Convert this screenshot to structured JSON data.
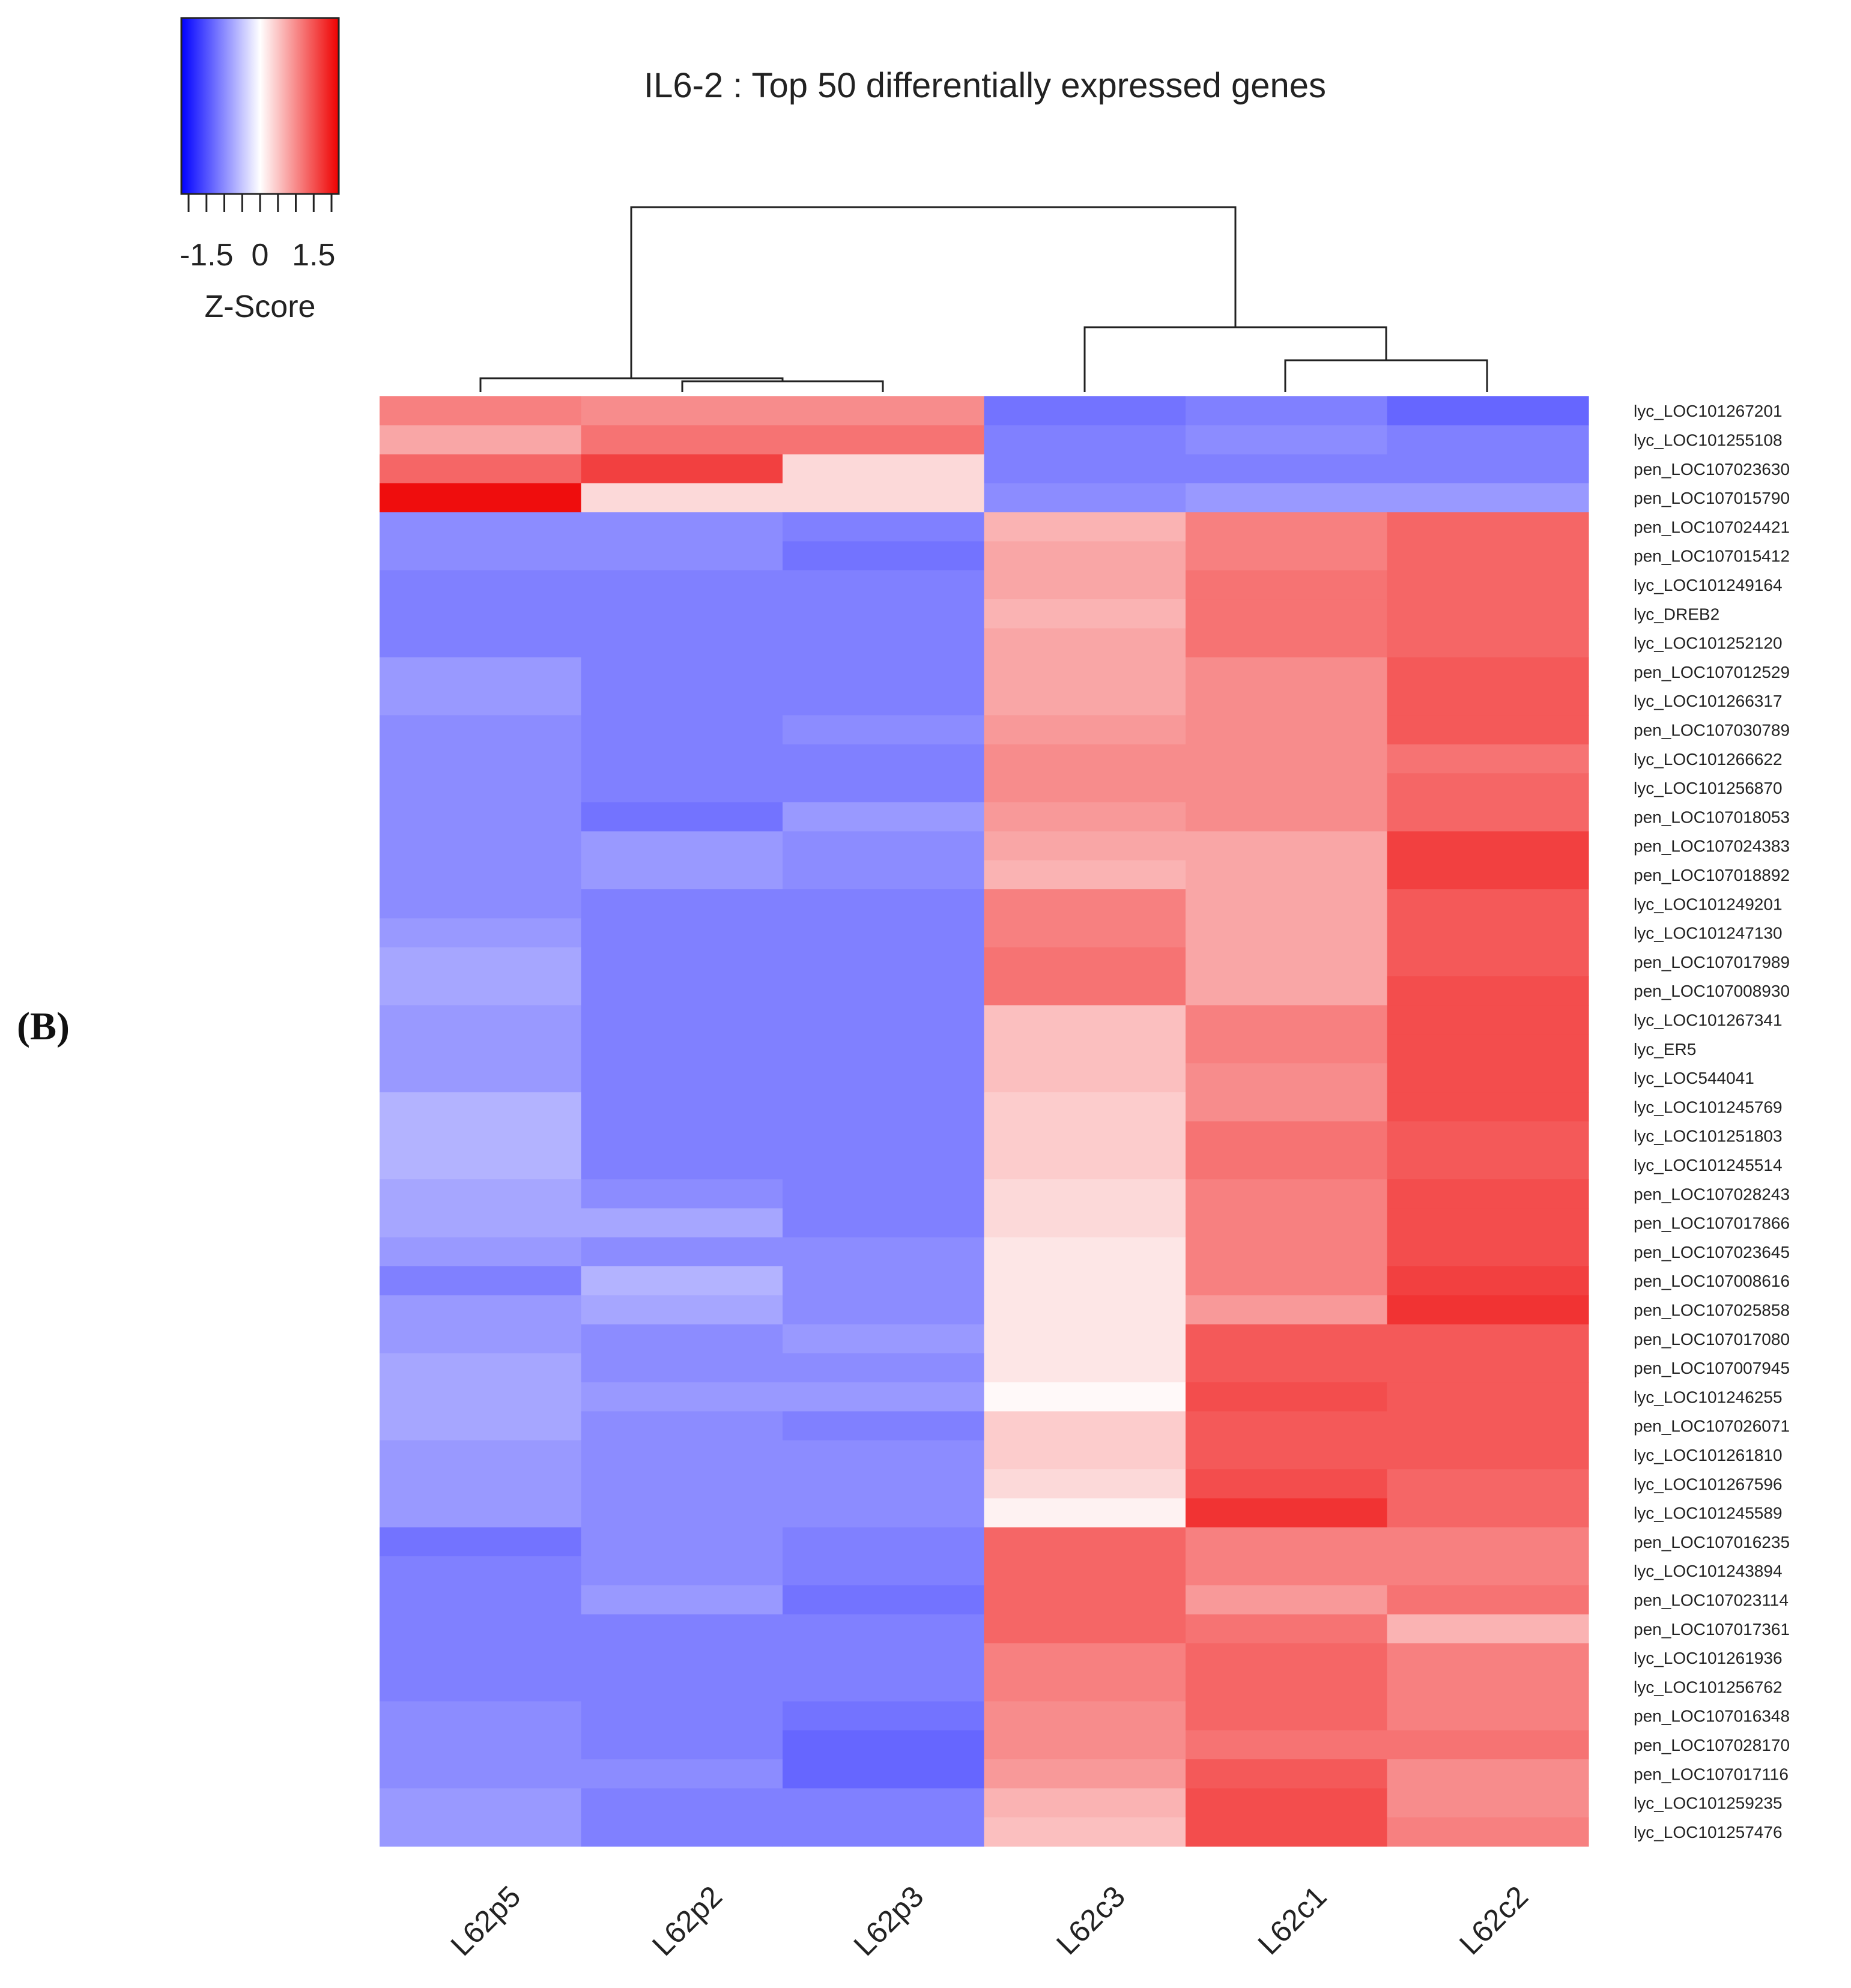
{
  "panel_label": "(B)",
  "colors": {
    "low": "#0000ff",
    "mid": "#ffffff",
    "high": "#ee0000",
    "ink": "#222222"
  },
  "chart_data": {
    "type": "heatmap",
    "title": "IL6-2 : Top 50 differentially expressed genes",
    "colorbar": {
      "label": "Z-Score",
      "ticks": [
        -1.5,
        0,
        1.5
      ],
      "range": [
        -2,
        2
      ]
    },
    "columns": [
      "L62p5",
      "L62p2",
      "L62p3",
      "L62c3",
      "L62c1",
      "L62c2"
    ],
    "rows": [
      "lyc_LOC101267201",
      "lyc_LOC101255108",
      "pen_LOC107023630",
      "pen_LOC107015790",
      "pen_LOC107024421",
      "pen_LOC107015412",
      "lyc_LOC101249164",
      "lyc_DREB2",
      "lyc_LOC101252120",
      "pen_LOC107012529",
      "lyc_LOC101266317",
      "pen_LOC107030789",
      "lyc_LOC101266622",
      "lyc_LOC101256870",
      "pen_LOC107018053",
      "pen_LOC107024383",
      "pen_LOC107018892",
      "lyc_LOC101249201",
      "lyc_LOC101247130",
      "pen_LOC107017989",
      "pen_LOC107008930",
      "lyc_LOC101267341",
      "lyc_ER5",
      "lyc_LOC544041",
      "lyc_LOC101245769",
      "lyc_LOC101251803",
      "lyc_LOC101245514",
      "pen_LOC107028243",
      "pen_LOC107017866",
      "pen_LOC107023645",
      "pen_LOC107008616",
      "pen_LOC107025858",
      "pen_LOC107017080",
      "pen_LOC107007945",
      "lyc_LOC101246255",
      "pen_LOC107026071",
      "lyc_LOC101261810",
      "lyc_LOC101267596",
      "lyc_LOC101245589",
      "pen_LOC107016235",
      "lyc_LOC101243894",
      "pen_LOC107023114",
      "pen_LOC107017361",
      "lyc_LOC101261936",
      "lyc_LOC101256762",
      "pen_LOC107016348",
      "pen_LOC107028170",
      "pen_LOC107017116",
      "lyc_LOC101259235",
      "lyc_LOC101257476"
    ],
    "values": [
      [
        1.0,
        0.9,
        0.9,
        -1.1,
        -1.0,
        -1.2
      ],
      [
        0.7,
        1.1,
        1.1,
        -1.0,
        -0.9,
        -1.0
      ],
      [
        1.2,
        1.5,
        0.3,
        -1.0,
        -1.0,
        -1.0
      ],
      [
        1.9,
        0.3,
        0.3,
        -0.9,
        -0.8,
        -0.8
      ],
      [
        -0.9,
        -0.9,
        -1.0,
        0.6,
        1.0,
        1.2
      ],
      [
        -0.9,
        -0.9,
        -1.1,
        0.7,
        1.0,
        1.2
      ],
      [
        -1.0,
        -1.0,
        -1.0,
        0.7,
        1.1,
        1.2
      ],
      [
        -1.0,
        -1.0,
        -1.0,
        0.6,
        1.1,
        1.2
      ],
      [
        -1.0,
        -1.0,
        -1.0,
        0.7,
        1.1,
        1.2
      ],
      [
        -0.8,
        -1.0,
        -1.0,
        0.7,
        0.9,
        1.3
      ],
      [
        -0.8,
        -1.0,
        -1.0,
        0.7,
        0.9,
        1.3
      ],
      [
        -0.9,
        -1.0,
        -0.9,
        0.8,
        0.9,
        1.3
      ],
      [
        -0.9,
        -1.0,
        -1.0,
        0.9,
        0.9,
        1.1
      ],
      [
        -0.9,
        -1.0,
        -1.0,
        0.9,
        0.9,
        1.2
      ],
      [
        -0.9,
        -1.1,
        -0.8,
        0.8,
        0.9,
        1.2
      ],
      [
        -0.9,
        -0.8,
        -0.9,
        0.7,
        0.7,
        1.5
      ],
      [
        -0.9,
        -0.8,
        -0.9,
        0.6,
        0.7,
        1.5
      ],
      [
        -0.9,
        -1.0,
        -1.0,
        1.0,
        0.7,
        1.3
      ],
      [
        -0.8,
        -1.0,
        -1.0,
        1.0,
        0.7,
        1.3
      ],
      [
        -0.7,
        -1.0,
        -1.0,
        1.1,
        0.7,
        1.3
      ],
      [
        -0.7,
        -1.0,
        -1.0,
        1.1,
        0.7,
        1.4
      ],
      [
        -0.8,
        -1.0,
        -1.0,
        0.5,
        1.0,
        1.4
      ],
      [
        -0.8,
        -1.0,
        -1.0,
        0.5,
        1.0,
        1.4
      ],
      [
        -0.8,
        -1.0,
        -1.0,
        0.5,
        0.9,
        1.4
      ],
      [
        -0.6,
        -1.0,
        -1.0,
        0.4,
        0.9,
        1.4
      ],
      [
        -0.6,
        -1.0,
        -1.0,
        0.4,
        1.1,
        1.3
      ],
      [
        -0.6,
        -1.0,
        -1.0,
        0.4,
        1.1,
        1.3
      ],
      [
        -0.7,
        -0.9,
        -1.0,
        0.3,
        1.0,
        1.4
      ],
      [
        -0.7,
        -0.7,
        -1.0,
        0.3,
        1.0,
        1.4
      ],
      [
        -0.8,
        -0.9,
        -0.9,
        0.2,
        1.0,
        1.4
      ],
      [
        -1.0,
        -0.6,
        -0.9,
        0.2,
        1.0,
        1.5
      ],
      [
        -0.8,
        -0.7,
        -0.9,
        0.2,
        0.8,
        1.6
      ],
      [
        -0.8,
        -0.9,
        -0.8,
        0.2,
        1.3,
        1.3
      ],
      [
        -0.7,
        -0.9,
        -0.9,
        0.2,
        1.3,
        1.3
      ],
      [
        -0.7,
        -0.8,
        -0.8,
        0.05,
        1.4,
        1.3
      ],
      [
        -0.7,
        -0.9,
        -1.0,
        0.4,
        1.3,
        1.3
      ],
      [
        -0.8,
        -0.9,
        -0.9,
        0.4,
        1.3,
        1.3
      ],
      [
        -0.8,
        -0.9,
        -0.9,
        0.3,
        1.4,
        1.2
      ],
      [
        -0.8,
        -0.9,
        -0.9,
        0.1,
        1.6,
        1.2
      ],
      [
        -1.1,
        -0.9,
        -1.0,
        1.2,
        1.0,
        1.0
      ],
      [
        -1.0,
        -0.9,
        -1.0,
        1.2,
        1.0,
        1.0
      ],
      [
        -1.0,
        -0.8,
        -1.1,
        1.2,
        0.8,
        1.1
      ],
      [
        -1.0,
        -1.0,
        -1.0,
        1.2,
        1.1,
        0.6
      ],
      [
        -1.0,
        -1.0,
        -1.0,
        1.0,
        1.2,
        1.0
      ],
      [
        -1.0,
        -1.0,
        -1.0,
        1.0,
        1.2,
        1.0
      ],
      [
        -0.9,
        -1.0,
        -1.1,
        0.9,
        1.2,
        1.0
      ],
      [
        -0.9,
        -1.0,
        -1.2,
        0.9,
        1.1,
        1.1
      ],
      [
        -0.9,
        -0.9,
        -1.2,
        0.8,
        1.3,
        0.9
      ],
      [
        -0.8,
        -1.0,
        -1.0,
        0.6,
        1.4,
        0.9
      ],
      [
        -0.8,
        -1.0,
        -1.0,
        0.5,
        1.4,
        1.0
      ]
    ]
  }
}
